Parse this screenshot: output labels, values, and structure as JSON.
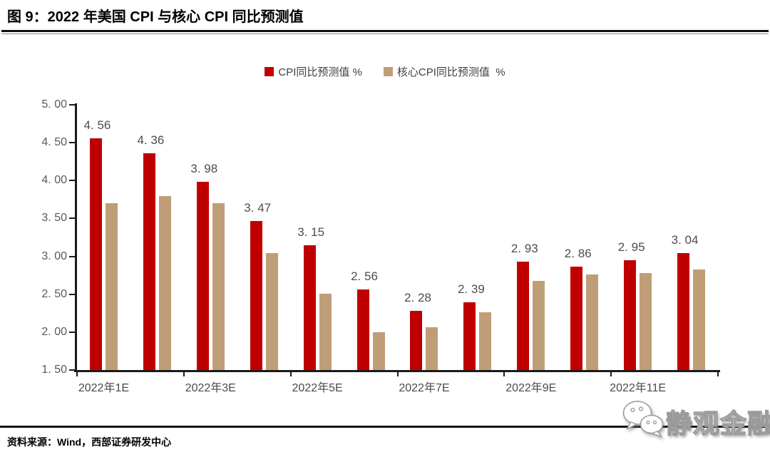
{
  "page": {
    "title": "图 9：2022 年美国 CPI 与核心 CPI 同比预测值",
    "source": "资料来源：Wind，西部证券研发中心",
    "watermark": "静观金融"
  },
  "legend": {
    "items": [
      {
        "label": "CPI同比预测值 %",
        "color": "#c00000"
      },
      {
        "label": "核心CPI同比预测值  %",
        "color": "#bf9e77"
      }
    ]
  },
  "chart_data": {
    "type": "bar",
    "title": "2022 年美国 CPI 与核心 CPI 同比预测值",
    "num_groups": 12,
    "x_tick_labels": [
      "2022年1E",
      "2022年3E",
      "2022年5E",
      "2022年7E",
      "2022年9E",
      "2022年11E"
    ],
    "x_tick_group_indices": [
      0,
      2,
      4,
      6,
      8,
      10
    ],
    "y_ticks": [
      "5.00",
      "4.50",
      "4.00",
      "3.50",
      "3.00",
      "2.50",
      "2.00",
      "1.50"
    ],
    "ylim": [
      1.5,
      5.0
    ],
    "grid": false,
    "legend_position": "top-center",
    "series": [
      {
        "name": "CPI同比预测值 %",
        "color": "#c00000",
        "data_labels": true,
        "values": [
          4.56,
          4.36,
          3.98,
          3.47,
          3.15,
          2.56,
          2.28,
          2.39,
          2.93,
          2.86,
          2.95,
          3.04
        ]
      },
      {
        "name": "核心CPI同比预测值 %",
        "color": "#bf9e77",
        "data_labels": false,
        "values_estimated": true,
        "values": [
          3.7,
          3.8,
          3.7,
          3.04,
          2.51,
          2.0,
          2.06,
          2.26,
          2.68,
          2.76,
          2.78,
          2.83
        ]
      }
    ]
  }
}
